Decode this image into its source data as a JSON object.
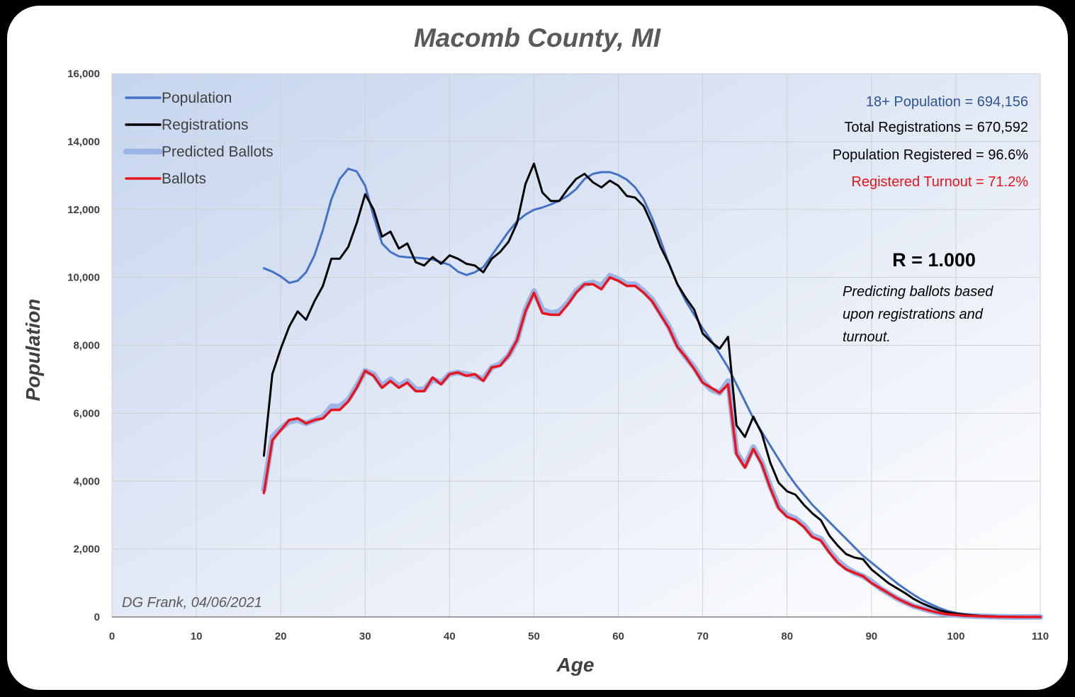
{
  "chart_data": {
    "type": "line",
    "title": "Macomb County, MI",
    "xlabel": "Age",
    "ylabel": "Population",
    "xlim": [
      0,
      110
    ],
    "ylim": [
      0,
      16000
    ],
    "xticks": [
      0,
      10,
      20,
      30,
      40,
      50,
      60,
      70,
      80,
      90,
      100,
      110
    ],
    "xtick_labels": [
      "0",
      "10",
      "20",
      "30",
      "40",
      "50",
      "60",
      "70",
      "80",
      "90",
      "100",
      "110"
    ],
    "yticks": [
      0,
      2000,
      4000,
      6000,
      8000,
      10000,
      12000,
      14000,
      16000
    ],
    "ytick_labels": [
      "0",
      "2,000",
      "4,000",
      "6,000",
      "8,000",
      "10,000",
      "12,000",
      "14,000",
      "16,000"
    ],
    "grid": true,
    "legend_position": "top-left",
    "x": [
      18,
      19,
      20,
      21,
      22,
      23,
      24,
      25,
      26,
      27,
      28,
      29,
      30,
      31,
      32,
      33,
      34,
      35,
      36,
      37,
      38,
      39,
      40,
      41,
      42,
      43,
      44,
      45,
      46,
      47,
      48,
      49,
      50,
      51,
      52,
      53,
      54,
      55,
      56,
      57,
      58,
      59,
      60,
      61,
      62,
      63,
      64,
      65,
      66,
      67,
      68,
      69,
      70,
      71,
      72,
      73,
      74,
      75,
      76,
      77,
      78,
      79,
      80,
      81,
      82,
      83,
      84,
      85,
      86,
      87,
      88,
      89,
      90,
      91,
      92,
      93,
      94,
      95,
      96,
      97,
      98,
      99,
      100,
      101,
      102,
      103,
      104,
      105,
      106,
      107,
      108,
      109,
      110
    ],
    "series": [
      {
        "name": "Population",
        "color": "#4472C4",
        "values": [
          10270,
          10170,
          10030,
          9840,
          9900,
          10150,
          10650,
          11400,
          12300,
          12900,
          13200,
          13120,
          12700,
          11800,
          11000,
          10750,
          10620,
          10590,
          10580,
          10560,
          10530,
          10450,
          10370,
          10170,
          10070,
          10150,
          10300,
          10650,
          11000,
          11350,
          11650,
          11850,
          11990,
          12060,
          12150,
          12260,
          12400,
          12600,
          12900,
          13050,
          13100,
          13100,
          13020,
          12880,
          12650,
          12300,
          11750,
          11100,
          10400,
          9800,
          9300,
          8900,
          8500,
          8150,
          7750,
          7350,
          6850,
          6350,
          5850,
          5450,
          5050,
          4650,
          4250,
          3900,
          3600,
          3300,
          3050,
          2800,
          2550,
          2300,
          2050,
          1800,
          1600,
          1400,
          1200,
          1000,
          820,
          650,
          500,
          380,
          270,
          180,
          120,
          80,
          50,
          30,
          20,
          10,
          5,
          2,
          0,
          0,
          0
        ]
      },
      {
        "name": "Registrations",
        "color": "#000000",
        "values": [
          4750,
          7150,
          7900,
          8550,
          9000,
          8750,
          9300,
          9750,
          10550,
          10550,
          10900,
          11600,
          12450,
          12000,
          11200,
          11350,
          10850,
          11000,
          10450,
          10350,
          10600,
          10400,
          10650,
          10550,
          10400,
          10350,
          10150,
          10550,
          10750,
          11050,
          11600,
          12750,
          13350,
          12500,
          12250,
          12250,
          12600,
          12900,
          13050,
          12800,
          12650,
          12850,
          12700,
          12400,
          12350,
          12100,
          11550,
          10900,
          10400,
          9800,
          9400,
          9050,
          8350,
          8100,
          7900,
          8250,
          5650,
          5300,
          5900,
          5400,
          4550,
          3950,
          3700,
          3600,
          3300,
          3050,
          2850,
          2400,
          2100,
          1850,
          1750,
          1700,
          1400,
          1200,
          1000,
          850,
          700,
          530,
          400,
          300,
          200,
          140,
          100,
          70,
          50,
          30,
          20,
          10,
          5,
          2,
          0,
          0,
          0
        ]
      },
      {
        "name": "Predicted Ballots",
        "color": "#9DB4E6",
        "values": [
          3750,
          5300,
          5550,
          5750,
          5800,
          5700,
          5800,
          5900,
          6200,
          6200,
          6400,
          6800,
          7250,
          7150,
          6800,
          7000,
          6800,
          6950,
          6700,
          6700,
          7000,
          6900,
          7150,
          7200,
          7150,
          7100,
          7000,
          7350,
          7450,
          7700,
          8150,
          9050,
          9600,
          9050,
          8950,
          9000,
          9250,
          9600,
          9800,
          9850,
          9750,
          10050,
          9950,
          9800,
          9800,
          9600,
          9350,
          8950,
          8550,
          8000,
          7650,
          7350,
          6950,
          6700,
          6600,
          6950,
          4850,
          4450,
          5000,
          4550,
          3850,
          3250,
          3000,
          2900,
          2700,
          2400,
          2300,
          1950,
          1650,
          1450,
          1300,
          1200,
          1050,
          850,
          700,
          550,
          430,
          320,
          250,
          180,
          120,
          80,
          60,
          40,
          30,
          20,
          10,
          5,
          2,
          0,
          0,
          0,
          0
        ]
      },
      {
        "name": "Ballots",
        "color": "#E8141E",
        "values": [
          3650,
          5200,
          5500,
          5800,
          5850,
          5700,
          5800,
          5850,
          6100,
          6100,
          6350,
          6750,
          7250,
          7100,
          6750,
          6950,
          6750,
          6900,
          6650,
          6650,
          7050,
          6850,
          7150,
          7200,
          7100,
          7150,
          6950,
          7350,
          7400,
          7700,
          8150,
          9000,
          9550,
          8950,
          8900,
          8900,
          9200,
          9550,
          9800,
          9800,
          9650,
          10000,
          9900,
          9750,
          9750,
          9550,
          9300,
          8900,
          8500,
          7950,
          7650,
          7300,
          6900,
          6750,
          6600,
          6850,
          4800,
          4400,
          4950,
          4500,
          3800,
          3200,
          2950,
          2850,
          2650,
          2350,
          2250,
          1900,
          1600,
          1400,
          1300,
          1200,
          1000,
          850,
          700,
          550,
          430,
          320,
          250,
          180,
          120,
          80,
          60,
          40,
          30,
          20,
          10,
          5,
          2,
          0,
          0,
          0,
          0
        ]
      }
    ],
    "annotations": {
      "population_total": "18+ Population = 694,156",
      "registrations_total": "Total Registrations = 670,592",
      "population_registered": "Population Registered = 96.6%",
      "registered_turnout": "Registered Turnout = 71.2%",
      "r_value": "R = 1.000",
      "note_lines": [
        "Predicting ballots based",
        "upon registrations and",
        "turnout."
      ],
      "credit": "DG Frank, 04/06/2021"
    },
    "annotation_colors": {
      "population_total": "#2F5597",
      "registrations_total": "#000000",
      "population_registered": "#000000",
      "registered_turnout": "#E8141E"
    }
  }
}
